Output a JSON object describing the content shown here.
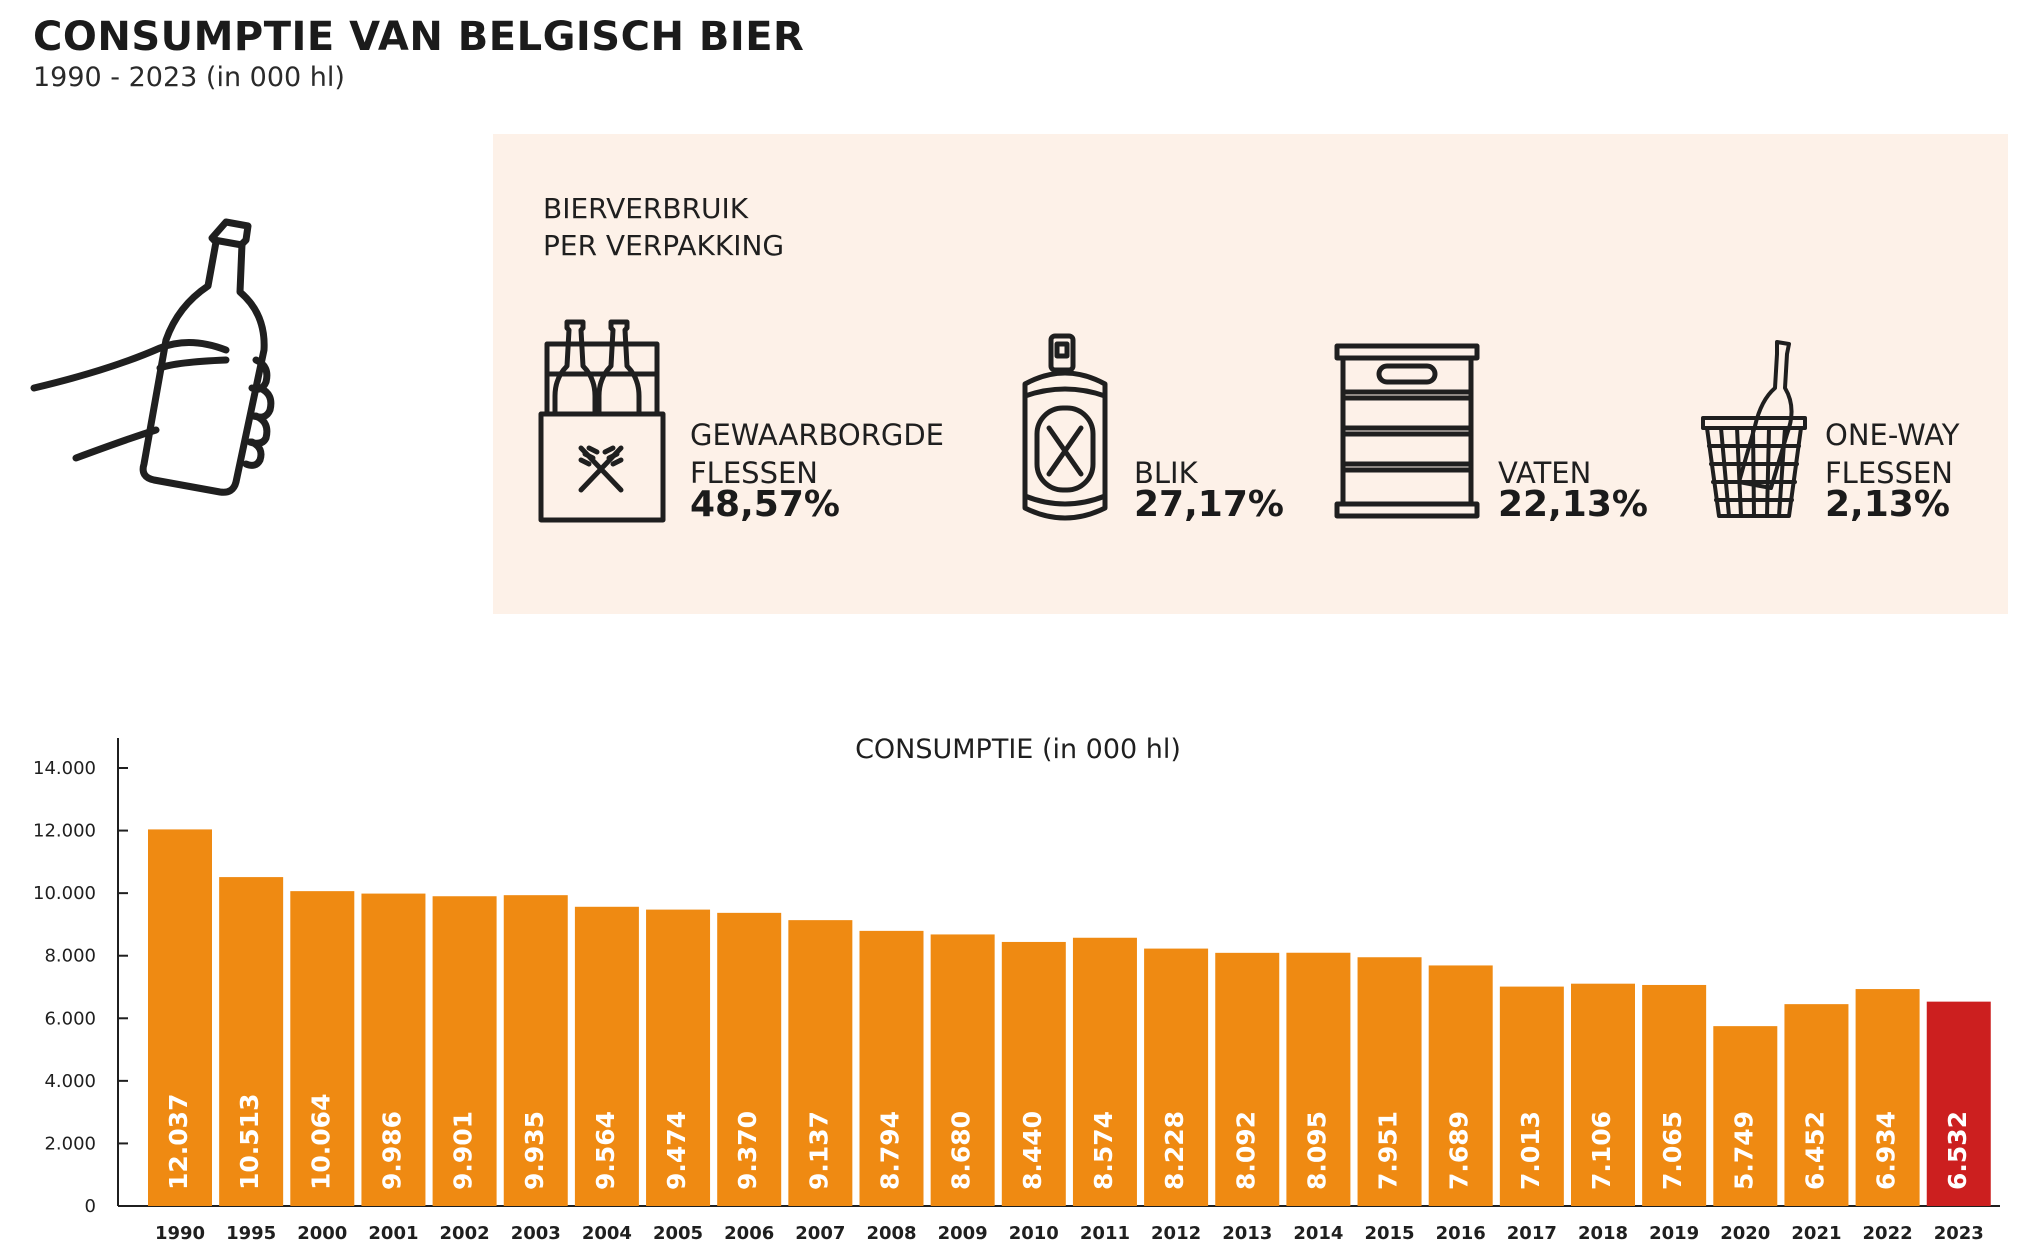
{
  "header": {
    "title": "CONSUMPTIE VAN BELGISCH BIER",
    "subtitle": "1990 - 2023 (in 000 hl)"
  },
  "packaging": {
    "title_line1": "BIERVERBRUIK",
    "title_line2": "PER VERPAKKING",
    "items": [
      {
        "label_line1": "GEWAARBORGDE",
        "label_line2": "FLESSEN",
        "value": "48,57%",
        "icon": "bottle-crate-icon"
      },
      {
        "label_line1": "",
        "label_line2": "BLIK",
        "value": "27,17%",
        "icon": "can-icon"
      },
      {
        "label_line1": "",
        "label_line2": "VATEN",
        "value": "22,13%",
        "icon": "keg-icon"
      },
      {
        "label_line1": "ONE-WAY",
        "label_line2": "FLESSEN",
        "value": "2,13%",
        "icon": "bottle-basket-icon"
      }
    ]
  },
  "colors": {
    "bar": "#ef8a12",
    "highlight": "#cc1f1f",
    "panel_bg": "#fdf1e8"
  },
  "chart_data": {
    "type": "bar",
    "title": "CONSUMPTIE (in 000 hl)",
    "categories": [
      "1990",
      "1995",
      "2000",
      "2001",
      "2002",
      "2003",
      "2004",
      "2005",
      "2006",
      "2007",
      "2008",
      "2009",
      "2010",
      "2011",
      "2012",
      "2013",
      "2014",
      "2015",
      "2016",
      "2017",
      "2018",
      "2019",
      "2020",
      "2021",
      "2022",
      "2023"
    ],
    "values": [
      12037,
      10513,
      10064,
      9986,
      9901,
      9935,
      9564,
      9474,
      9370,
      9137,
      8794,
      8680,
      8440,
      8574,
      8228,
      8092,
      8095,
      7951,
      7689,
      7013,
      7106,
      7065,
      5749,
      6452,
      6934,
      6532
    ],
    "value_labels": [
      "12.037",
      "10.513",
      "10.064",
      "9.986",
      "9.901",
      "9.935",
      "9.564",
      "9.474",
      "9.370",
      "9.137",
      "8.794",
      "8.680",
      "8.440",
      "8.574",
      "8.228",
      "8.092",
      "8.095",
      "7.951",
      "7.689",
      "7.013",
      "7.106",
      "7.065",
      "5.749",
      "6.452",
      "6.934",
      "6.532"
    ],
    "yticks": [
      0,
      2000,
      4000,
      6000,
      8000,
      10000,
      12000,
      14000
    ],
    "ytick_labels": [
      "0",
      "2.000",
      "4.000",
      "6.000",
      "8.000",
      "10.000",
      "12.000",
      "14.000"
    ],
    "ylim": [
      0,
      14000
    ],
    "highlight_category": "2023",
    "grid": false
  }
}
